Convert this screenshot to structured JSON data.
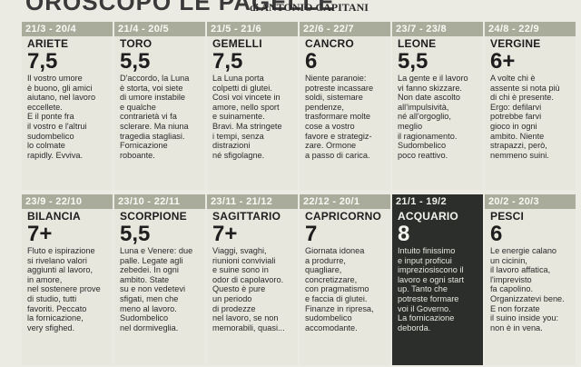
{
  "masthead": {
    "title": "OROSCOPO LE PAGELLE",
    "byline": "di ANTONIO CAPITANI"
  },
  "signs": [
    {
      "range": "21/3 - 20/4",
      "name": "ARIETE",
      "grade": "7,5",
      "text": "Il vostro umore\nè buono, gli amici\naiutano, nel lavoro\neccellete.\nE il ponte fra\nil vostro e l'altrui\nsudombelico\nlo colmate\nrapidly. Evviva."
    },
    {
      "range": "21/4 - 20/5",
      "name": "TORO",
      "grade": "5,5",
      "text": "D'accordo, la Luna\nè storta, voi siete\ndi umore instabile\ne qualche\ncontrarietà vi fa\nsclerare. Ma niuna\ntragedia stagliasi.\nFornicazione\nroboante."
    },
    {
      "range": "21/5 - 21/6",
      "name": "GEMELLI",
      "grade": "7,5",
      "text": "La Luna porta\ncolpetti di glutei.\nCosì voi vincete in\namore, nello sport\ne suinamente.\nBravi. Ma stringete\ni tempi, senza\ndistrazioni\nné sfigolagne."
    },
    {
      "range": "22/6 - 22/7",
      "name": "CANCRO",
      "grade": "6",
      "text": "Niente paranoie:\npotreste incassare\nsoldi, sistemare\npendenze,\ntrasformare molte\ncose a vostro\nfavore e strategiz-\nzare. Ormone\na passo di carica."
    },
    {
      "range": "23/7 - 23/8",
      "name": "LEONE",
      "grade": "5,5",
      "text": "La gente e il lavoro\nvi fanno skizzare.\nNon date ascolto\nall'impulsività,\nné all'orgoglio,\nmeglio\nil ragionamento.\nSudombelico\npoco reattivo."
    },
    {
      "range": "24/8 - 22/9",
      "name": "VERGINE",
      "grade": "6+",
      "text": "A volte chi è\nassente si nota più\ndi chi è presente.\nErgo: defilarvi\npotrebbe farvi\ngioco in ogni\nambito. Niente\nstrapazzi, però,\nnemmeno suini."
    },
    {
      "range": "23/9 - 22/10",
      "name": "BILANCIA",
      "grade": "7+",
      "text": "Fluto e ispirazione\nsi rivelano valori\naggiunti al lavoro,\nin amore,\nnel sostenere prove\ndi studio, tutti\nfavoriti. Peccato\nla fornicazione,\nvery sfighed."
    },
    {
      "range": "23/10 - 22/11",
      "name": "SCORPIONE",
      "grade": "5,5",
      "text": "Luna e Venere: due\npalle. Legate agli\nzebedei. In ogni\nambito. State\nsu e non vedetevi\nsfigati, men che\nmeno al lavoro.\nSudombelico\nnel dormiveglia."
    },
    {
      "range": "23/11 - 21/12",
      "name": "SAGITTARIO",
      "grade": "7+",
      "text": "Viaggi, svaghi,\nriunioni conviviali\ne suine sono in\nodor di capolavoro.\nQuesto è pure\nun periodo\ndi prodezze\nnel lavoro, se non\nmemorabili, quasi..."
    },
    {
      "range": "22/12 - 20/1",
      "name": "CAPRICORNO",
      "grade": "7",
      "text": "Giornata idonea\na produrre,\nquagliare,\nconcretizzare,\ncon pragmatismo\ne faccia di glutei.\nFinanze in ripresa,\nsudombelico\naccomodante."
    },
    {
      "range": "21/1 - 19/2",
      "name": "ACQUARIO",
      "grade": "8",
      "text": "Intuito finissimo\ne input proficui\nimpreziosiscono il\nlavoro e ogni start\nup. Tanto che\npotreste formare\nvoi il Governo.\nLa fornicazione\ndeborda."
    },
    {
      "range": "20/2 - 20/3",
      "name": "PESCI",
      "grade": "6",
      "text": "Le energie calano\nun cicinin,\nil lavoro affatica,\nl'imprevisto\nfa capolino.\nOrganizzatevi bene.\nE non forzate\nil suino inside you:\nnon è in vena."
    }
  ],
  "colors": {
    "highlight_card": "#2b2e2b",
    "range_bar": "#a9ac9b"
  }
}
